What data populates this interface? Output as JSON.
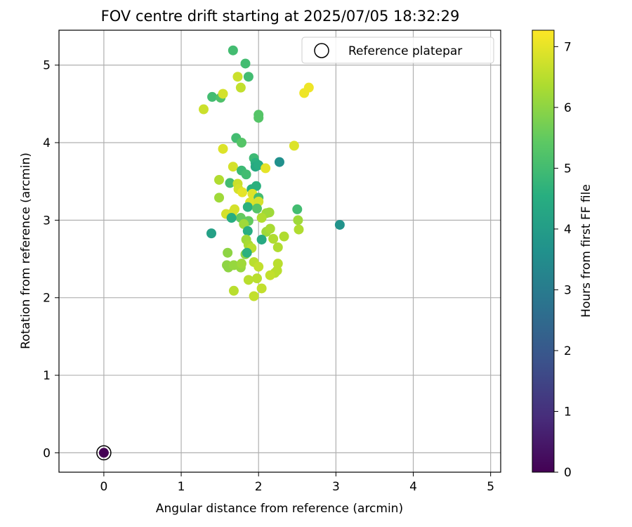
{
  "chart_data": {
    "type": "scatter",
    "title": "FOV centre drift starting at 2025/07/05 18:32:29",
    "xlabel": "Angular distance from reference (arcmin)",
    "ylabel": "Rotation from reference (arcmin)",
    "xlim": [
      -0.58,
      5.13
    ],
    "ylim": [
      -0.25,
      5.45
    ],
    "xticks": [
      0,
      1,
      2,
      3,
      4,
      5
    ],
    "yticks": [
      0,
      1,
      2,
      3,
      4,
      5
    ],
    "grid": true,
    "legend": {
      "placement": "top-right",
      "entries": [
        "Reference platepar"
      ]
    },
    "colorbar": {
      "label": "Hours from first FF file",
      "range": [
        0,
        7.27
      ],
      "ticks": [
        0,
        1,
        2,
        3,
        4,
        5,
        6,
        7
      ],
      "colormap": "viridis"
    },
    "reference_point": {
      "x": 0,
      "y": 0,
      "c": 0
    },
    "points": [
      {
        "x": 0.0,
        "y": 0.0,
        "c": 0.0
      },
      {
        "x": 1.67,
        "y": 5.19,
        "c": 5.0
      },
      {
        "x": 1.83,
        "y": 5.02,
        "c": 5.0
      },
      {
        "x": 1.87,
        "y": 4.85,
        "c": 5.0
      },
      {
        "x": 1.73,
        "y": 4.85,
        "c": 6.7
      },
      {
        "x": 1.77,
        "y": 4.71,
        "c": 6.6
      },
      {
        "x": 2.65,
        "y": 4.71,
        "c": 7.1
      },
      {
        "x": 2.59,
        "y": 4.64,
        "c": 7.1
      },
      {
        "x": 1.4,
        "y": 4.59,
        "c": 5.0
      },
      {
        "x": 1.51,
        "y": 4.58,
        "c": 5.2
      },
      {
        "x": 1.54,
        "y": 4.63,
        "c": 6.8
      },
      {
        "x": 1.29,
        "y": 4.43,
        "c": 6.7
      },
      {
        "x": 2.0,
        "y": 4.36,
        "c": 5.3
      },
      {
        "x": 2.0,
        "y": 4.32,
        "c": 5.3
      },
      {
        "x": 1.71,
        "y": 4.06,
        "c": 5.0
      },
      {
        "x": 1.78,
        "y": 4.0,
        "c": 5.3
      },
      {
        "x": 2.46,
        "y": 3.96,
        "c": 6.9
      },
      {
        "x": 1.54,
        "y": 3.92,
        "c": 6.9
      },
      {
        "x": 1.94,
        "y": 3.8,
        "c": 4.9
      },
      {
        "x": 1.96,
        "y": 3.74,
        "c": 4.6
      },
      {
        "x": 2.27,
        "y": 3.75,
        "c": 3.6
      },
      {
        "x": 1.96,
        "y": 3.69,
        "c": 4.4
      },
      {
        "x": 2.0,
        "y": 3.71,
        "c": 4.5
      },
      {
        "x": 2.09,
        "y": 3.67,
        "c": 7.0
      },
      {
        "x": 1.67,
        "y": 3.69,
        "c": 6.8
      },
      {
        "x": 1.78,
        "y": 3.64,
        "c": 4.9
      },
      {
        "x": 1.84,
        "y": 3.59,
        "c": 5.0
      },
      {
        "x": 1.49,
        "y": 3.52,
        "c": 6.4
      },
      {
        "x": 1.63,
        "y": 3.48,
        "c": 5.0
      },
      {
        "x": 1.73,
        "y": 3.47,
        "c": 6.7
      },
      {
        "x": 1.74,
        "y": 3.4,
        "c": 6.8
      },
      {
        "x": 1.79,
        "y": 3.36,
        "c": 7.0
      },
      {
        "x": 1.91,
        "y": 3.4,
        "c": 4.6
      },
      {
        "x": 1.97,
        "y": 3.44,
        "c": 4.6
      },
      {
        "x": 1.92,
        "y": 3.34,
        "c": 6.9
      },
      {
        "x": 2.0,
        "y": 3.29,
        "c": 5.0
      },
      {
        "x": 1.49,
        "y": 3.29,
        "c": 6.2
      },
      {
        "x": 1.89,
        "y": 3.23,
        "c": 6.9
      },
      {
        "x": 2.0,
        "y": 3.24,
        "c": 6.8
      },
      {
        "x": 1.86,
        "y": 3.17,
        "c": 4.6
      },
      {
        "x": 1.98,
        "y": 3.15,
        "c": 5.3
      },
      {
        "x": 1.69,
        "y": 3.14,
        "c": 6.8
      },
      {
        "x": 1.66,
        "y": 3.09,
        "c": 6.8
      },
      {
        "x": 1.58,
        "y": 3.08,
        "c": 6.8
      },
      {
        "x": 2.5,
        "y": 3.14,
        "c": 5.0
      },
      {
        "x": 2.1,
        "y": 3.09,
        "c": 6.2
      },
      {
        "x": 2.14,
        "y": 3.1,
        "c": 6.2
      },
      {
        "x": 2.04,
        "y": 3.03,
        "c": 6.4
      },
      {
        "x": 1.77,
        "y": 3.03,
        "c": 5.5
      },
      {
        "x": 1.65,
        "y": 3.03,
        "c": 4.5
      },
      {
        "x": 1.87,
        "y": 2.99,
        "c": 5.5
      },
      {
        "x": 1.81,
        "y": 2.95,
        "c": 6.2
      },
      {
        "x": 2.51,
        "y": 3.0,
        "c": 6.2
      },
      {
        "x": 3.05,
        "y": 2.94,
        "c": 3.7
      },
      {
        "x": 1.39,
        "y": 2.83,
        "c": 4.1
      },
      {
        "x": 1.86,
        "y": 2.86,
        "c": 4.5
      },
      {
        "x": 2.1,
        "y": 2.85,
        "c": 6.2
      },
      {
        "x": 2.15,
        "y": 2.89,
        "c": 6.3
      },
      {
        "x": 2.52,
        "y": 2.88,
        "c": 6.4
      },
      {
        "x": 2.33,
        "y": 2.79,
        "c": 6.4
      },
      {
        "x": 2.19,
        "y": 2.76,
        "c": 6.4
      },
      {
        "x": 2.04,
        "y": 2.75,
        "c": 4.4
      },
      {
        "x": 1.84,
        "y": 2.75,
        "c": 6.2
      },
      {
        "x": 1.87,
        "y": 2.68,
        "c": 6.3
      },
      {
        "x": 1.91,
        "y": 2.64,
        "c": 6.5
      },
      {
        "x": 2.25,
        "y": 2.65,
        "c": 6.4
      },
      {
        "x": 1.6,
        "y": 2.58,
        "c": 6.0
      },
      {
        "x": 1.83,
        "y": 2.56,
        "c": 6.0
      },
      {
        "x": 1.85,
        "y": 2.58,
        "c": 4.6
      },
      {
        "x": 1.94,
        "y": 2.46,
        "c": 6.5
      },
      {
        "x": 2.0,
        "y": 2.4,
        "c": 6.6
      },
      {
        "x": 1.59,
        "y": 2.42,
        "c": 6.0
      },
      {
        "x": 1.61,
        "y": 2.39,
        "c": 6.0
      },
      {
        "x": 1.68,
        "y": 2.42,
        "c": 6.1
      },
      {
        "x": 1.77,
        "y": 2.39,
        "c": 6.1
      },
      {
        "x": 1.78,
        "y": 2.44,
        "c": 6.2
      },
      {
        "x": 2.25,
        "y": 2.44,
        "c": 6.5
      },
      {
        "x": 2.24,
        "y": 2.35,
        "c": 6.5
      },
      {
        "x": 2.21,
        "y": 2.32,
        "c": 6.5
      },
      {
        "x": 2.15,
        "y": 2.29,
        "c": 6.6
      },
      {
        "x": 1.98,
        "y": 2.25,
        "c": 6.5
      },
      {
        "x": 1.87,
        "y": 2.23,
        "c": 6.5
      },
      {
        "x": 2.04,
        "y": 2.12,
        "c": 6.6
      },
      {
        "x": 1.68,
        "y": 2.09,
        "c": 6.5
      },
      {
        "x": 1.94,
        "y": 2.02,
        "c": 6.6
      }
    ]
  }
}
